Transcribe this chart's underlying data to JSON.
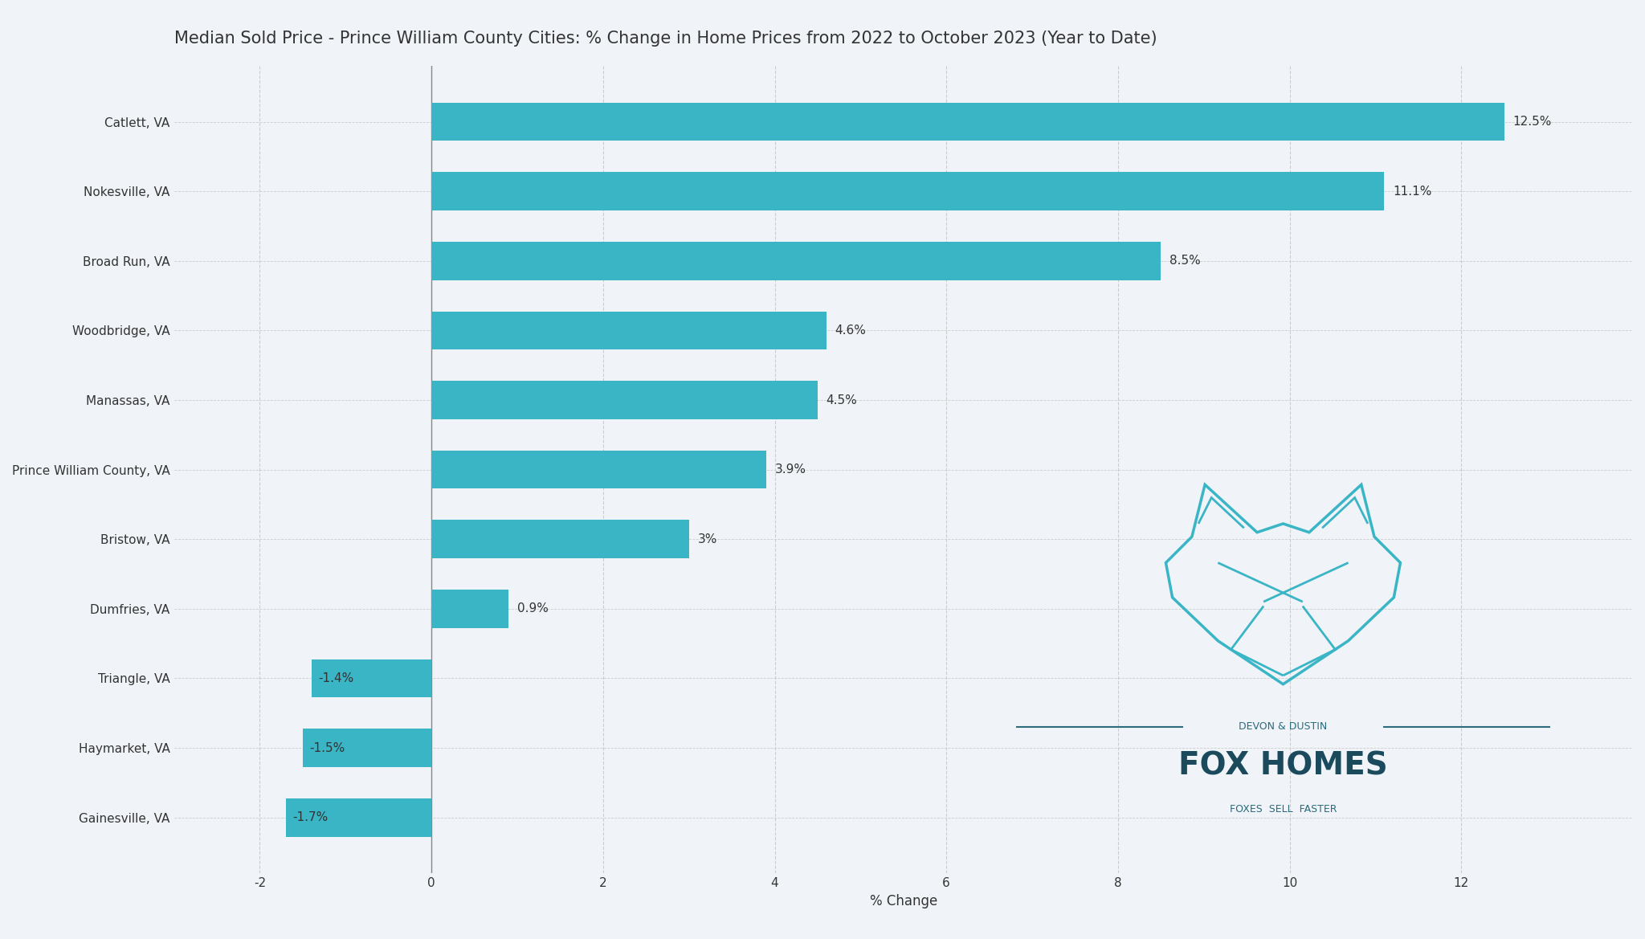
{
  "title": "Median Sold Price - Prince William County Cities: % Change in Home Prices from 2022 to October 2023 (Year to Date)",
  "categories": [
    "Catlett, VA",
    "Nokesville, VA",
    "Broad Run, VA",
    "Woodbridge, VA",
    "Manassas, VA",
    "Prince William County, VA",
    "Bristow, VA",
    "Dumfries, VA",
    "Triangle, VA",
    "Haymarket, VA",
    "Gainesville, VA"
  ],
  "values": [
    12.5,
    11.1,
    8.5,
    4.6,
    4.5,
    3.9,
    3.0,
    0.9,
    -1.4,
    -1.5,
    -1.7
  ],
  "labels": [
    "12.5%",
    "11.1%",
    "8.5%",
    "4.6%",
    "4.5%",
    "3.9%",
    "3%",
    "0.9%",
    "-1.4%",
    "-1.5%",
    "-1.7%"
  ],
  "bar_color": "#3ab5c6",
  "background_color": "#f0f4f8",
  "title_fontsize": 15,
  "xlabel": "% Change",
  "xlim": [
    -3,
    14
  ],
  "grid_color": "#cccccc",
  "text_color": "#333333",
  "label_fontsize": 11,
  "tick_fontsize": 11,
  "logo_line_color": "#2a6b7c",
  "logo_title_color": "#1a4a5c",
  "logo_fox_color": "#3ab5c6"
}
